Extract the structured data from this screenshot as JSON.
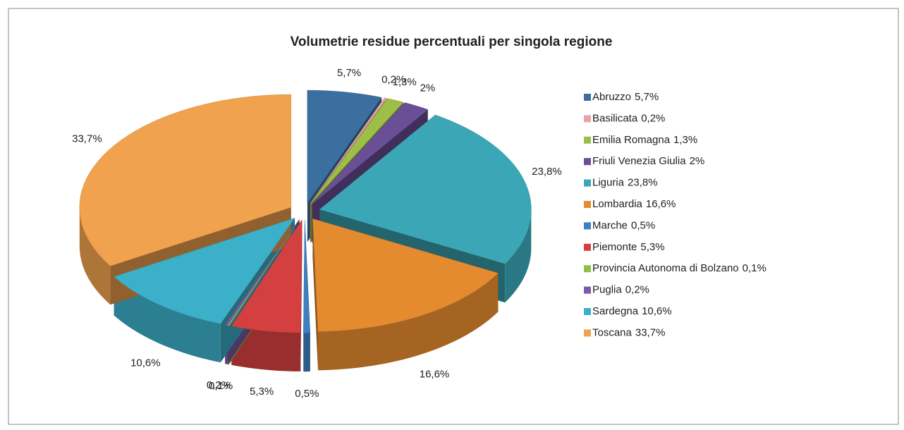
{
  "chart_data": {
    "type": "pie3d",
    "title": "Volumetrie residue percentuali per singola regione",
    "categories": [
      "Abruzzo",
      "Basilicata",
      "Emilia Romagna",
      "Friuli Venezia Giulia",
      "Liguria",
      "Lombardia",
      "Marche",
      "Piemonte",
      "Provincia Autonoma di Bolzano",
      "Puglia",
      "Sardegna",
      "Toscana"
    ],
    "values": [
      5.7,
      0.2,
      1.3,
      2,
      23.8,
      16.6,
      0.5,
      5.3,
      0.1,
      0.2,
      10.6,
      33.7
    ],
    "value_labels": [
      "5,7%",
      "0,2%",
      "1,3%",
      "2%",
      "23,8%",
      "16,6%",
      "0,5%",
      "5,3%",
      "0,1%",
      "0,2%",
      "10,6%",
      "33,7%"
    ],
    "colors": [
      "#3b6f9f",
      "#e9a3a3",
      "#9dbf48",
      "#6a4f96",
      "#3ba7b6",
      "#e58b2f",
      "#3f7fbf",
      "#d3403f",
      "#8fbf4a",
      "#7d5aa8",
      "#3cb0c8",
      "#f0a24e"
    ],
    "legend": "right"
  }
}
